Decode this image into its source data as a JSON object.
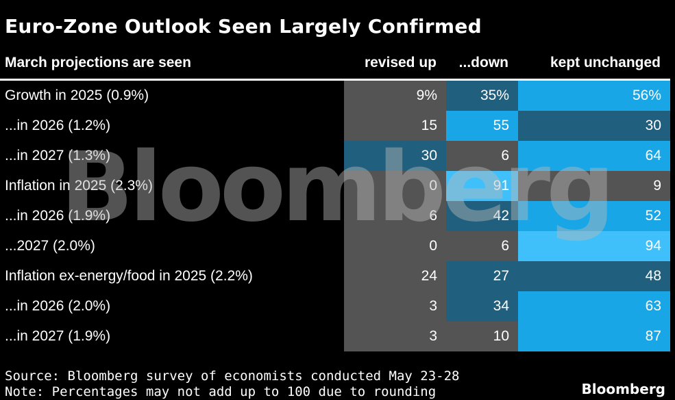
{
  "title": "Euro-Zone Outlook Seen Largely Confirmed",
  "colors": {
    "background": "#000000",
    "low": "#545454",
    "mid": "#205f7e",
    "high": "#18a6e7",
    "max": "#40c0fa",
    "text": "#ffffff"
  },
  "chart_data": {
    "type": "table",
    "row_header": "March projections are seen",
    "columns": [
      "revised up",
      "...down",
      "kept unchanged"
    ],
    "rows": [
      {
        "label": "Growth in 2025 (0.9%)",
        "values": [
          9,
          35,
          56
        ],
        "display": [
          "9%",
          "35%",
          "56%"
        ]
      },
      {
        "label": "...in 2026 (1.2%)",
        "values": [
          15,
          55,
          30
        ],
        "display": [
          "15",
          "55",
          "30"
        ]
      },
      {
        "label": "...in 2027 (1.3%)",
        "values": [
          30,
          6,
          64
        ],
        "display": [
          "30",
          "6",
          "64"
        ]
      },
      {
        "label": "Inflation in 2025 (2.3%)",
        "values": [
          0,
          91,
          9
        ],
        "display": [
          "0",
          "91",
          "9"
        ]
      },
      {
        "label": "...in 2026 (1.9%)",
        "values": [
          6,
          42,
          52
        ],
        "display": [
          "6",
          "42",
          "52"
        ]
      },
      {
        "label": "...2027 (2.0%)",
        "values": [
          0,
          6,
          94
        ],
        "display": [
          "0",
          "6",
          "94"
        ]
      },
      {
        "label": "Inflation ex-energy/food in 2025 (2.2%)",
        "values": [
          24,
          27,
          48
        ],
        "display": [
          "24",
          "27",
          "48"
        ]
      },
      {
        "label": "...in 2026 (2.0%)",
        "values": [
          3,
          34,
          63
        ],
        "display": [
          "3",
          "34",
          "63"
        ]
      },
      {
        "label": "...in 2027 (1.9%)",
        "values": [
          3,
          10,
          87
        ],
        "display": [
          "3",
          "10",
          "87"
        ]
      }
    ]
  },
  "watermark": "Bloomberg",
  "footer": {
    "source": "Source: Bloomberg survey of economists conducted May 23-28",
    "note": "Note: Percentages may not add up to 100 due to rounding",
    "brand": "Bloomberg"
  }
}
